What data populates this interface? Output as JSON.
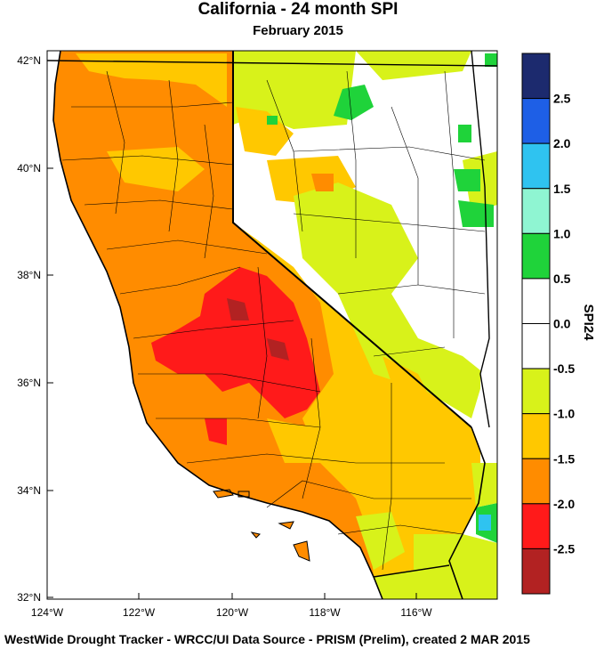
{
  "title": "California - 24 month SPI",
  "subtitle": "February 2015",
  "footer": "WestWide Drought Tracker - WRCC/UI  Data Source - PRISM (Prelim), created  2 MAR 2015",
  "lat_labels": [
    "42°N",
    "40°N",
    "38°N",
    "36°N",
    "34°N",
    "32°N"
  ],
  "lon_labels": [
    "124°W",
    "122°W",
    "120°W",
    "118°W",
    "116°W"
  ],
  "colorbar": {
    "title": "SPI24",
    "labels": [
      "2.5",
      "2.0",
      "1.5",
      "1.0",
      "0.5",
      "0.0",
      "-0.5",
      "-1.0",
      "-1.5",
      "-2.0",
      "-2.5"
    ],
    "colors": [
      "#1c2a6e",
      "#1e5fe6",
      "#2fc3f0",
      "#8ff5d2",
      "#1fd33a",
      "#ffffff",
      "#ffffff",
      "#d8f21a",
      "#ffc800",
      "#ff8c00",
      "#ff1a1a",
      "#b22222"
    ]
  }
}
